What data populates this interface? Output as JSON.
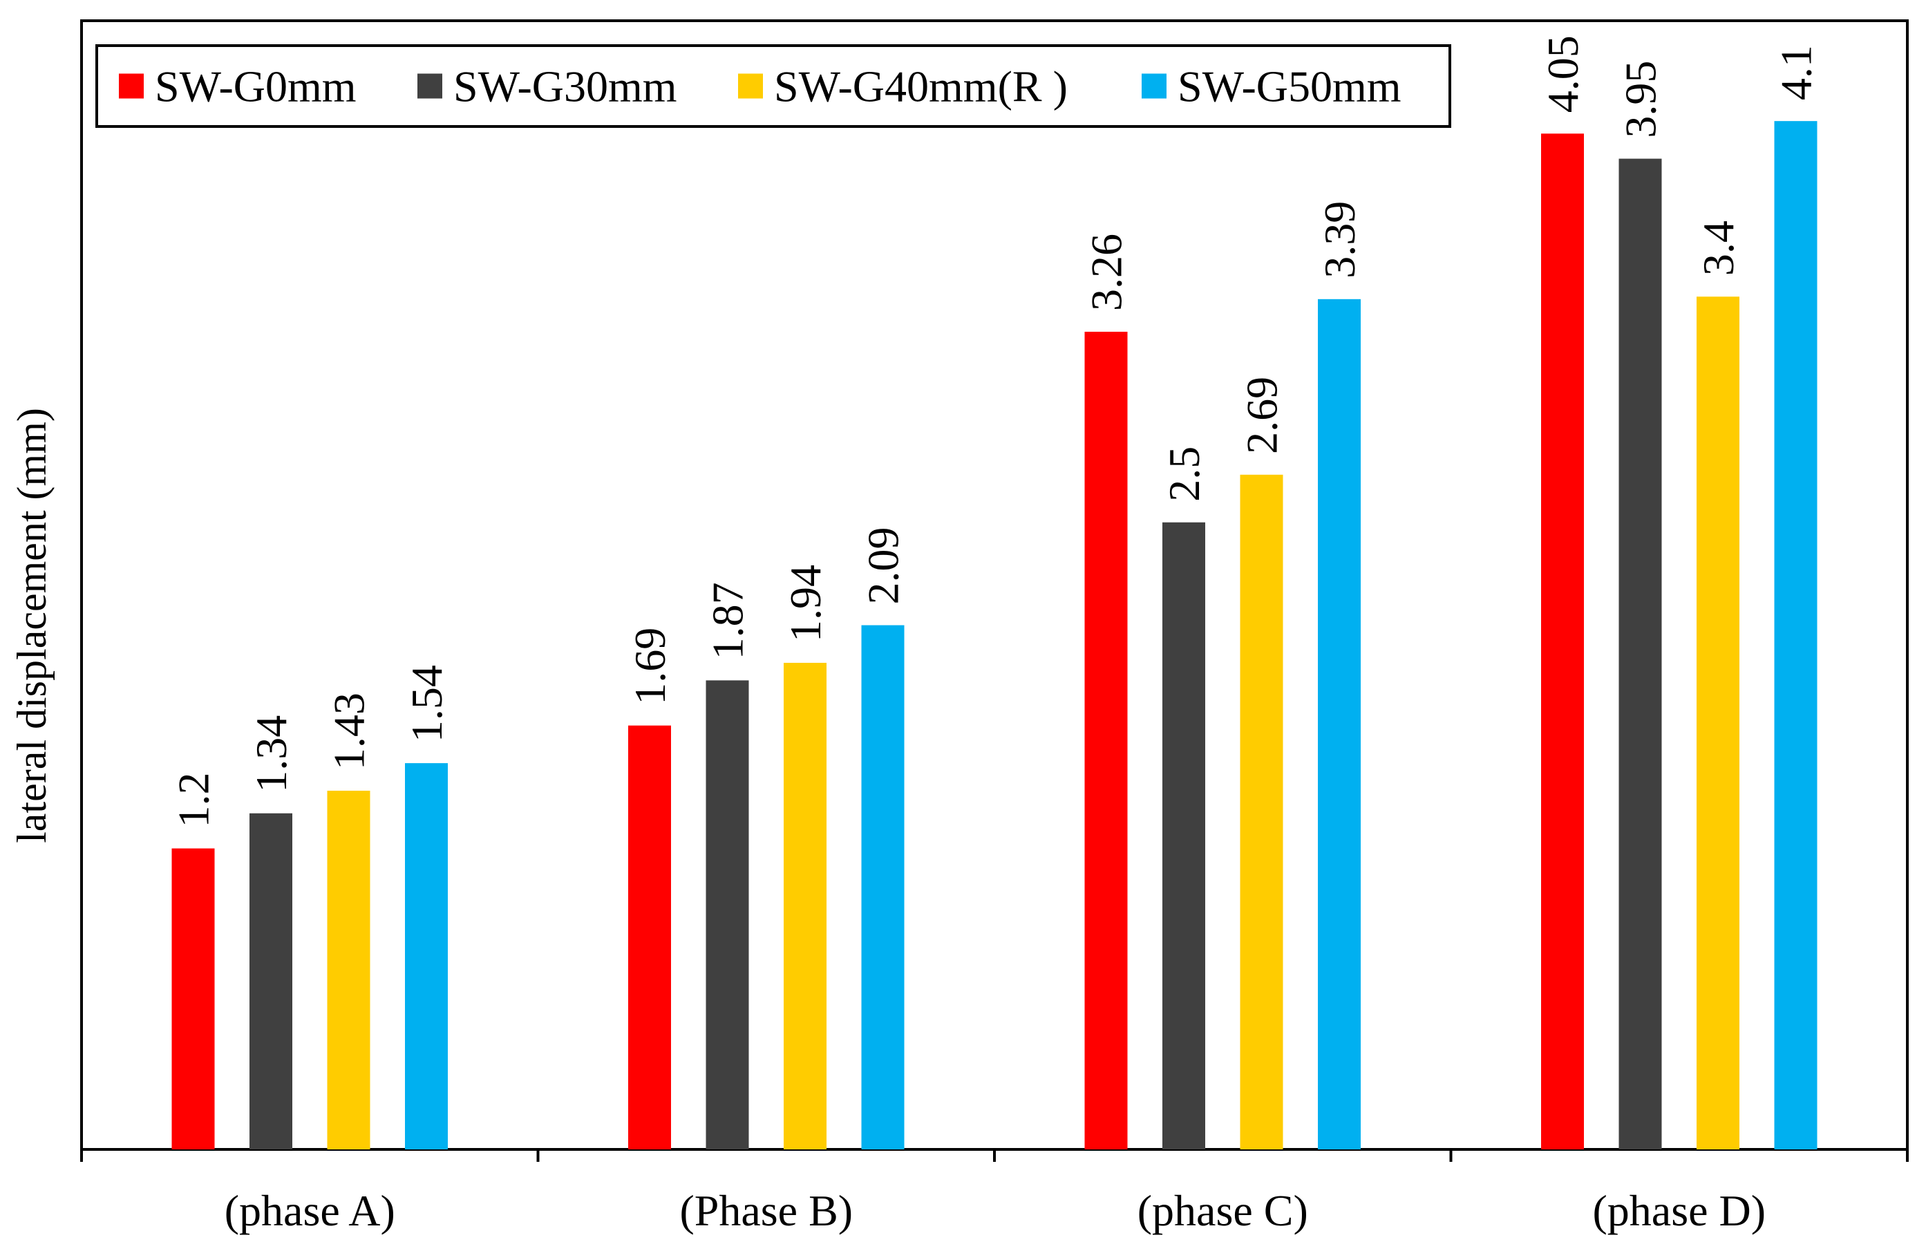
{
  "chart_data": {
    "type": "bar",
    "title": "",
    "xlabel": "",
    "ylabel": "lateral displacement (mm)",
    "categories": [
      "(phase A)",
      "(Phase B)",
      "(phase C)",
      "(phase D)"
    ],
    "series": [
      {
        "name": "SW-G0mm",
        "color": "#ff0000",
        "values": [
          1.2,
          1.69,
          3.26,
          4.05
        ],
        "labels": [
          "1.2",
          "1.69",
          "3.26",
          "4.05"
        ]
      },
      {
        "name": "SW-G30mm",
        "color": "#404040",
        "values": [
          1.34,
          1.87,
          2.5,
          3.95
        ],
        "labels": [
          "1.34",
          "1.87",
          "2.5",
          "3.95"
        ]
      },
      {
        "name": "SW-G40mm(R )",
        "color": "#ffcc00",
        "values": [
          1.43,
          1.94,
          2.69,
          3.4
        ],
        "labels": [
          "1.43",
          "1.94",
          "2.69",
          "3.4"
        ]
      },
      {
        "name": "SW-G50mm",
        "color": "#00b0f0",
        "values": [
          1.54,
          2.09,
          3.39,
          4.1
        ],
        "labels": [
          "1.54",
          "2.09",
          "3.39",
          "4.1"
        ]
      }
    ],
    "ylim": [
      0,
      4.5
    ],
    "grid": false,
    "legend": "top-left"
  }
}
